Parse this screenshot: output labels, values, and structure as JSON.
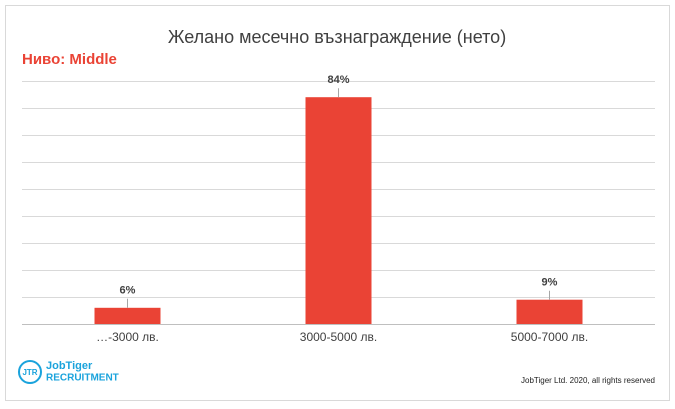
{
  "chart_data": {
    "type": "bar",
    "title": "Желано месечно възнаграждение (нето)",
    "subtitle": "Ниво: Middle",
    "categories": [
      "…-3000 лв.",
      "3000-5000 лв.",
      "5000-7000 лв."
    ],
    "values": [
      6,
      84,
      9
    ],
    "value_labels": [
      "6%",
      "84%",
      "9%"
    ],
    "color": "#ea4335",
    "ylim": [
      0,
      90
    ],
    "yticks": [
      0,
      10,
      20,
      30,
      40,
      50,
      60,
      70,
      80,
      90
    ],
    "grid": true
  },
  "logo": {
    "mark": "JTR",
    "name": "JobTiger",
    "tagline": "RECRUITMENT"
  },
  "footer": "JobTiger Ltd. 2020, all rights reserved"
}
